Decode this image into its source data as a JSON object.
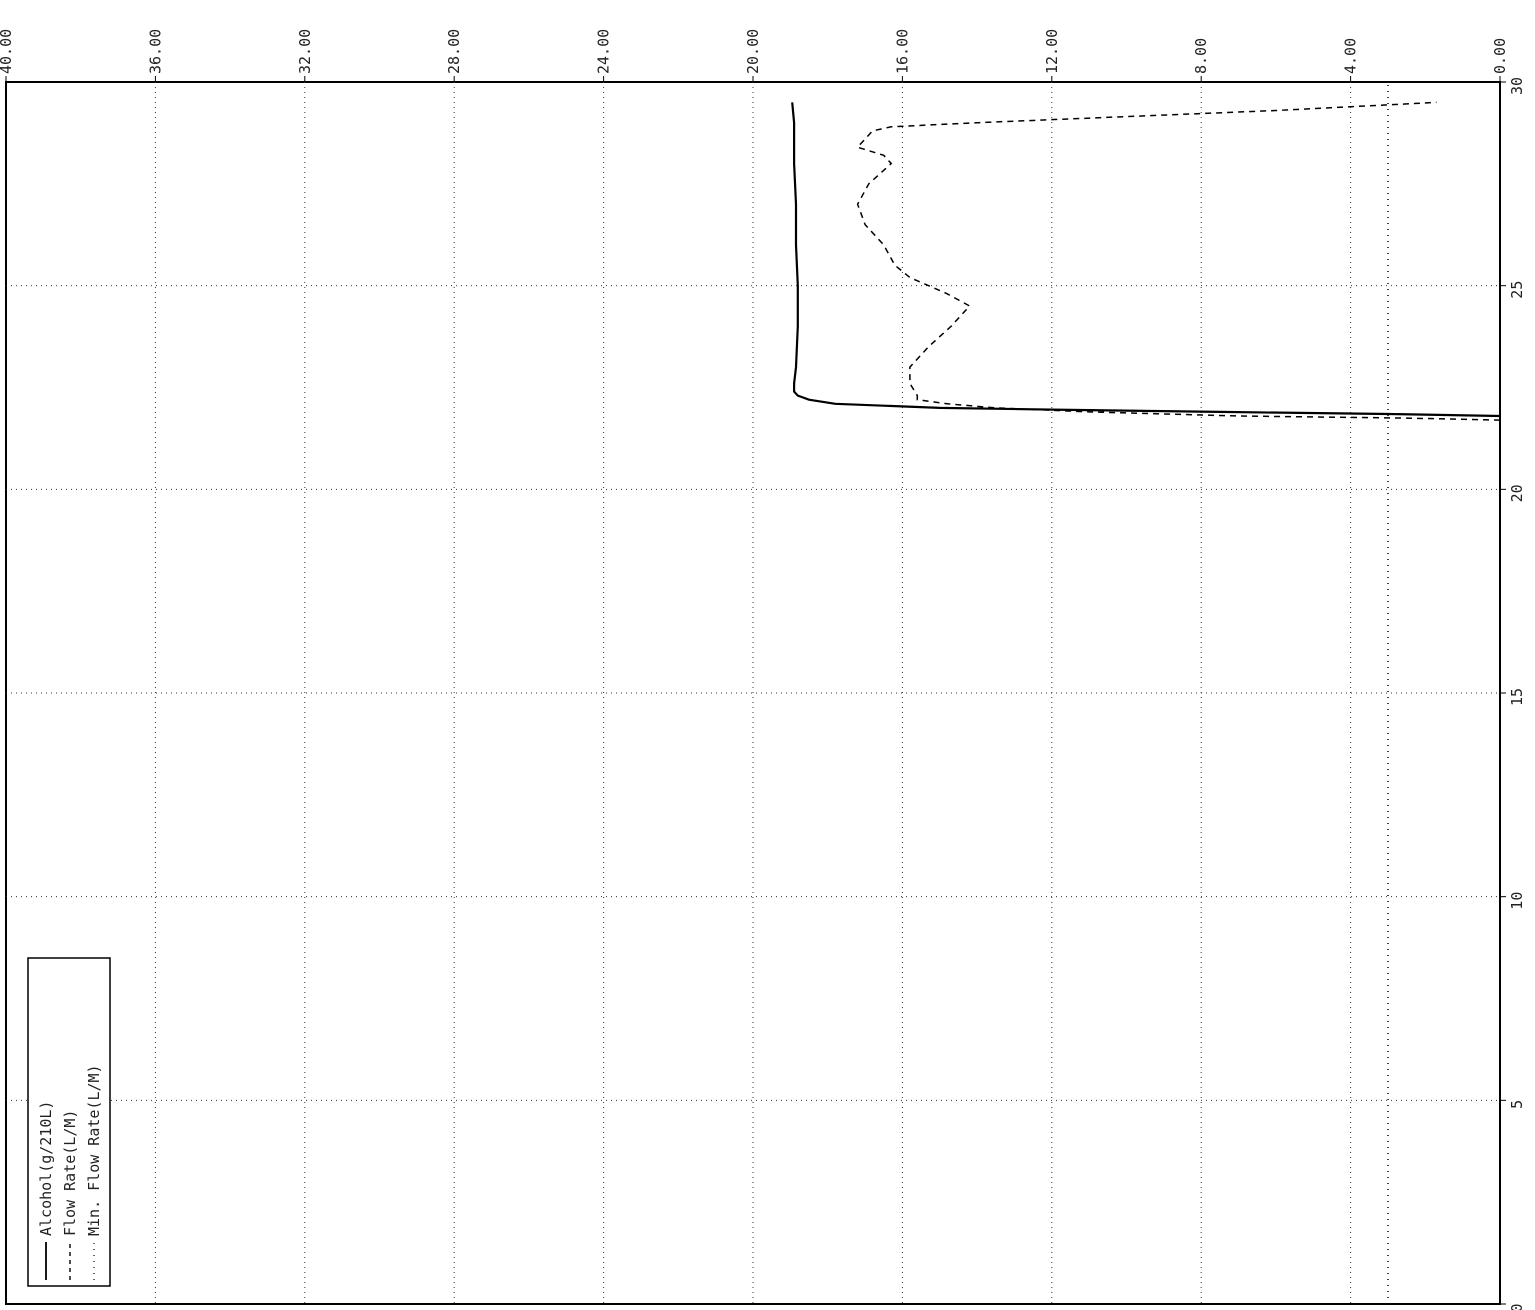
{
  "chart_data": {
    "type": "line",
    "orientation": "rotated-90-clockwise",
    "title": "",
    "xlabel": "",
    "ylabel": "",
    "x_axis": {
      "range": [
        0,
        30
      ],
      "ticks": [
        "0",
        "5",
        "10",
        "15",
        "20",
        "25",
        "30"
      ],
      "grid": true
    },
    "y_axis": {
      "range": [
        0,
        40
      ],
      "ticks": [
        "0.00",
        "4.00",
        "8.00",
        "12.00",
        "16.00",
        "20.00",
        "24.00",
        "28.00",
        "32.00",
        "36.00",
        "40.00"
      ],
      "grid": true
    },
    "legend": {
      "placement": "bottom-left",
      "entries": [
        "Alcohol(g/210L)",
        "Flow Rate(L/M)",
        "Min. Flow Rate(L/M)"
      ]
    },
    "series": [
      {
        "name": "Alcohol(g/210L)",
        "style": "solid",
        "color": "#000000",
        "x": [
          21.8,
          21.85,
          21.9,
          21.95,
          22.0,
          22.1,
          22.2,
          22.3,
          22.4,
          22.6,
          23.0,
          24.0,
          25.0,
          26.0,
          27.0,
          28.0,
          28.5,
          29.0,
          29.5
        ],
        "y": [
          0.0,
          3.0,
          7.5,
          11.5,
          15.0,
          17.8,
          18.5,
          18.8,
          18.9,
          18.9,
          18.85,
          18.8,
          18.8,
          18.85,
          18.85,
          18.9,
          18.9,
          18.9,
          18.95
        ]
      },
      {
        "name": "Flow Rate(L/M)",
        "style": "dashed",
        "color": "#000000",
        "x": [
          21.7,
          21.75,
          21.8,
          21.9,
          22.0,
          22.1,
          22.2,
          22.3,
          22.6,
          23.0,
          23.5,
          24.0,
          24.5,
          24.8,
          25.2,
          25.5,
          26.0,
          26.5,
          27.0,
          27.5,
          28.0,
          28.2,
          28.4,
          28.6,
          28.8,
          28.9,
          29.0,
          29.3,
          29.5
        ],
        "y": [
          0.0,
          2.5,
          7.0,
          11.0,
          13.5,
          14.8,
          15.6,
          15.6,
          15.8,
          15.8,
          15.3,
          14.7,
          14.2,
          14.8,
          15.8,
          16.2,
          16.5,
          17.0,
          17.2,
          16.9,
          16.3,
          16.5,
          17.2,
          17.0,
          16.8,
          16.3,
          14.0,
          6.0,
          1.7
        ]
      },
      {
        "name": "Min. Flow Rate(L/M)",
        "style": "dotted",
        "color": "#000000",
        "x": [
          0,
          30
        ],
        "y": [
          3.0,
          3.0
        ]
      }
    ]
  }
}
